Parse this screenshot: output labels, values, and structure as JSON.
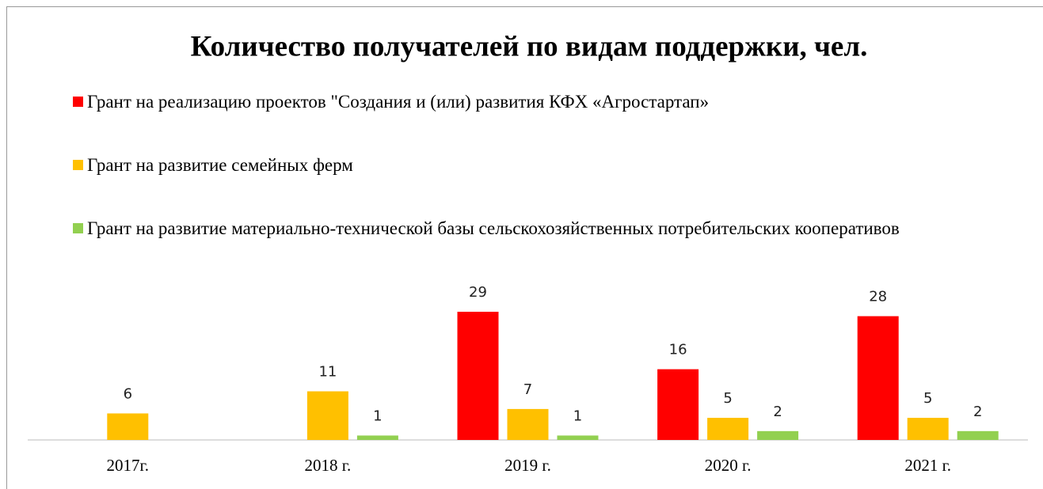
{
  "chart_data": {
    "type": "bar",
    "title": "Количество получателей по видам поддержки, чел.",
    "categories": [
      "2017г.",
      "2018 г.",
      "2019 г.",
      "2020 г.",
      "2021 г."
    ],
    "series": [
      {
        "name": "Грант на реализацию проектов \"Создания и (или) развития КФХ «Агростартап»",
        "color": "#ff0000",
        "values": [
          null,
          null,
          29,
          16,
          28
        ]
      },
      {
        "name": "Грант на развитие семейных ферм",
        "color": "#ffc000",
        "values": [
          6,
          11,
          7,
          5,
          5
        ]
      },
      {
        "name": "Грант на развитие материально-технической базы сельскохозяйственных потребительских кооперативов",
        "color": "#92d050",
        "values": [
          null,
          1,
          1,
          2,
          2
        ]
      }
    ],
    "legend": "top"
  }
}
